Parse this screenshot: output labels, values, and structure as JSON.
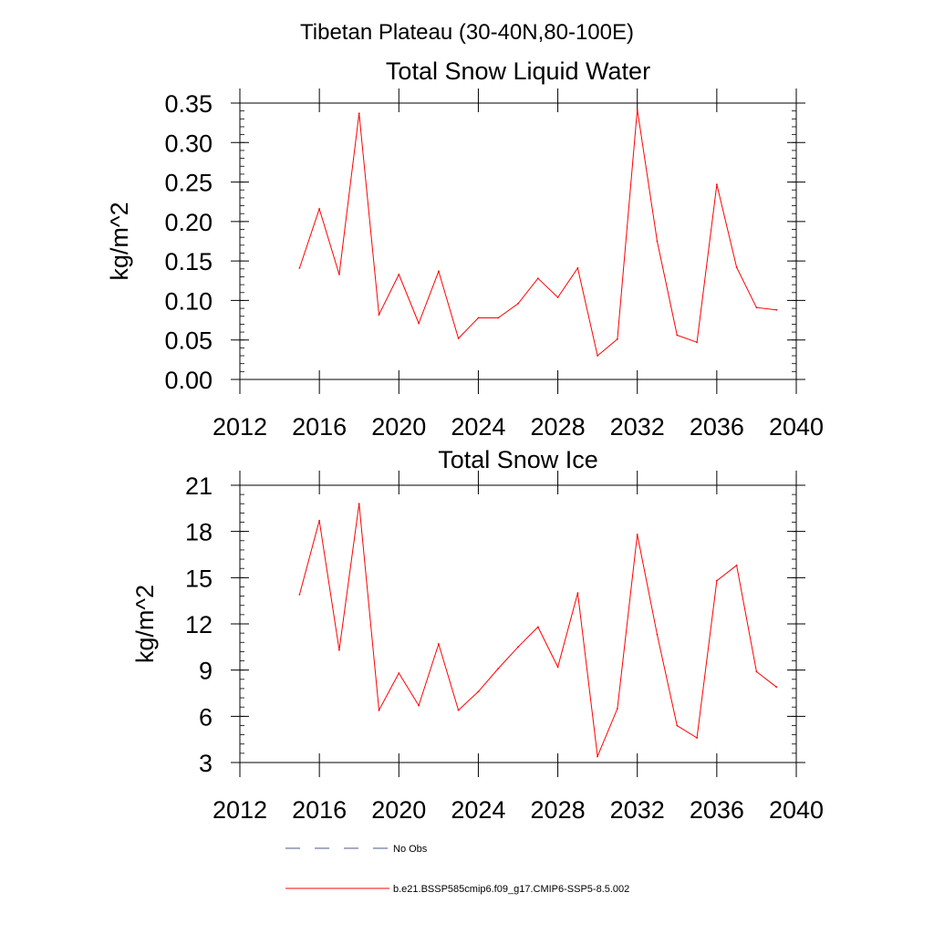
{
  "figure": {
    "title": "Tibetan Plateau (30-40N,80-100E)"
  },
  "legend": {
    "items": [
      {
        "label": "No Obs",
        "color": "#4a5a8a",
        "style": "dashed"
      },
      {
        "label": "b.e21.BSSP585cmip6.f09_g17.CMIP6-SSP5-8.5.002",
        "color": "#ff0000",
        "style": "solid"
      }
    ]
  },
  "chart_data": [
    {
      "type": "line",
      "title": "Total Snow Liquid Water",
      "ylabel": "kg/m^2",
      "xlim": [
        2012,
        2040
      ],
      "ylim": [
        0,
        0.35
      ],
      "x_ticks": [
        2012,
        2016,
        2020,
        2024,
        2028,
        2032,
        2036,
        2040
      ],
      "y_ticks": [
        "0.00",
        "0.05",
        "0.10",
        "0.15",
        "0.20",
        "0.25",
        "0.30",
        "0.35"
      ],
      "y_minor_step": 0.01,
      "grid": false,
      "series": [
        {
          "name": "b.e21.BSSP585cmip6.f09_g17.CMIP6-SSP5-8.5.002",
          "color": "#ff0000",
          "x": [
            2015,
            2016,
            2017,
            2018,
            2019,
            2020,
            2021,
            2022,
            2023,
            2024,
            2025,
            2026,
            2027,
            2028,
            2029,
            2030,
            2031,
            2032,
            2033,
            2034,
            2035,
            2036,
            2037,
            2038,
            2039
          ],
          "y": [
            0.141,
            0.216,
            0.133,
            0.337,
            0.082,
            0.133,
            0.071,
            0.137,
            0.052,
            0.078,
            0.078,
            0.096,
            0.128,
            0.104,
            0.141,
            0.03,
            0.051,
            0.342,
            0.175,
            0.056,
            0.047,
            0.247,
            0.142,
            0.091,
            0.088
          ]
        }
      ]
    },
    {
      "type": "line",
      "title": "Total Snow Ice",
      "ylabel": "kg/m^2",
      "xlim": [
        2012,
        2040
      ],
      "ylim": [
        3,
        21
      ],
      "x_ticks": [
        2012,
        2016,
        2020,
        2024,
        2028,
        2032,
        2036,
        2040
      ],
      "y_ticks": [
        "3",
        "6",
        "9",
        "12",
        "15",
        "18",
        "21"
      ],
      "y_minor_step": 0.6,
      "grid": false,
      "series": [
        {
          "name": "b.e21.BSSP585cmip6.f09_g17.CMIP6-SSP5-8.5.002",
          "color": "#ff0000",
          "x": [
            2015,
            2016,
            2017,
            2018,
            2019,
            2020,
            2021,
            2022,
            2023,
            2024,
            2025,
            2026,
            2027,
            2028,
            2029,
            2030,
            2031,
            2032,
            2033,
            2034,
            2035,
            2036,
            2037,
            2038,
            2039
          ],
          "y": [
            13.9,
            18.7,
            10.3,
            19.8,
            6.4,
            8.8,
            6.7,
            10.7,
            6.4,
            7.6,
            9.1,
            10.5,
            11.8,
            9.2,
            14.0,
            3.4,
            6.5,
            17.8,
            11.3,
            5.4,
            4.6,
            14.8,
            15.8,
            8.9,
            7.9
          ]
        }
      ]
    }
  ]
}
